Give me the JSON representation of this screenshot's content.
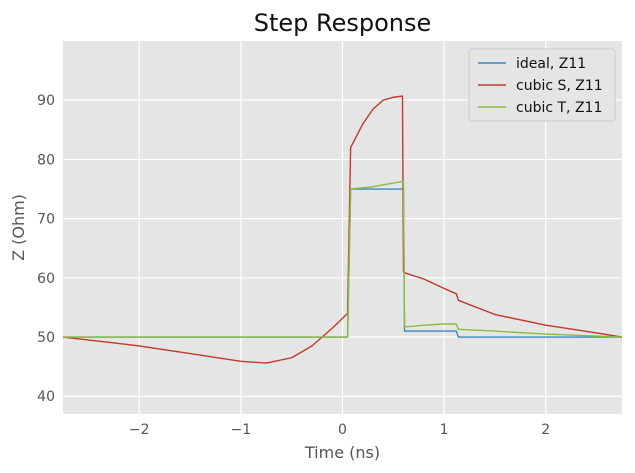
{
  "chart_data": {
    "type": "line",
    "title": "Step Response",
    "xlabel": "Time (ns)",
    "ylabel": "Z (Ohm)",
    "xlim": [
      -2.75,
      2.75
    ],
    "ylim": [
      37,
      100
    ],
    "xticks": [
      -2,
      -1,
      0,
      1,
      2
    ],
    "yticks": [
      40,
      50,
      60,
      70,
      80,
      90
    ],
    "grid": true,
    "legend_position": "top-right",
    "series": [
      {
        "name": "ideal, Z11",
        "color": "#348ABD",
        "x": [
          -2.75,
          0.05,
          0.08,
          0.6,
          0.61,
          1.12,
          1.14,
          2.75
        ],
        "y": [
          50,
          50,
          75,
          75,
          51,
          51,
          50,
          50
        ]
      },
      {
        "name": "cubic S, Z11",
        "color": "#C0392B",
        "x": [
          -2.75,
          -2.0,
          -1.5,
          -1.0,
          -0.75,
          -0.5,
          -0.3,
          -0.1,
          0.05,
          0.08,
          0.2,
          0.3,
          0.4,
          0.5,
          0.59,
          0.6,
          0.62,
          0.8,
          1.0,
          1.12,
          1.14,
          1.5,
          2.0,
          2.5,
          2.75
        ],
        "y": [
          50,
          48.5,
          47.2,
          45.9,
          45.6,
          46.5,
          48.5,
          51.5,
          54,
          82,
          86,
          88.5,
          90,
          90.5,
          90.7,
          61,
          60.8,
          59.8,
          58.2,
          57.3,
          56.2,
          53.8,
          52,
          50.7,
          50
        ]
      },
      {
        "name": "cubic T, Z11",
        "color": "#8EBA42",
        "x": [
          -2.75,
          0.05,
          0.08,
          0.3,
          0.5,
          0.6,
          0.61,
          0.8,
          1.0,
          1.12,
          1.14,
          1.5,
          2.0,
          2.75
        ],
        "y": [
          50,
          50,
          75,
          75.4,
          76,
          76.3,
          51.7,
          52,
          52.2,
          52.2,
          51.3,
          51,
          50.5,
          50
        ]
      }
    ]
  }
}
